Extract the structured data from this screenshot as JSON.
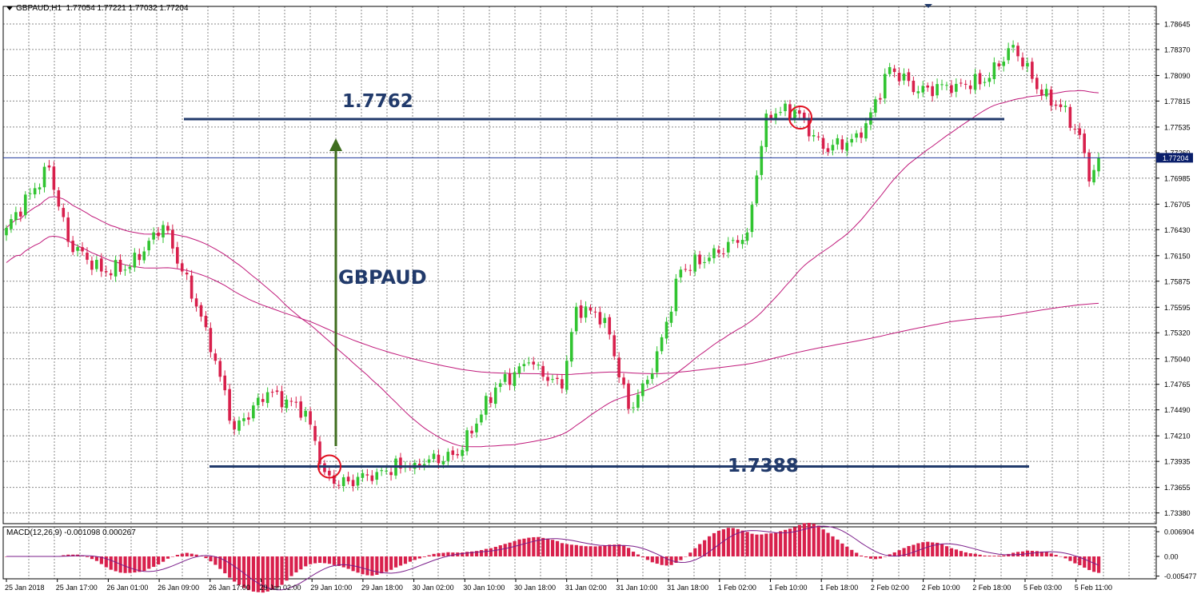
{
  "header": {
    "symbol_tf": "GBPAUD,H1",
    "ohlc": "1.77054 1.77221 1.77032 1.77204"
  },
  "macd": {
    "label": "MACD(12,26,9) -0.001098 0.000267",
    "ticks": [
      "0.006904",
      "0.00",
      "-0.005477"
    ]
  },
  "annotations": {
    "resistance_label": "1.7762",
    "support_label": "1.7388",
    "symbol_label": "GBPAUD"
  },
  "colors": {
    "bull": "#31c431",
    "bear": "#d8204c",
    "grid": "#8a8a8a",
    "level_line": "#213a6b",
    "ma": "#c0197a",
    "arrow": "#3f6e1f",
    "circle": "#e01020"
  },
  "chart_data": {
    "type": "candlestick",
    "symbol": "GBPAUD",
    "timeframe": "H1",
    "current_price": "1.77204",
    "ylim": [
      1.7338,
      1.7878
    ],
    "y_ticks": [
      "1.78645",
      "1.78370",
      "1.78090",
      "1.77815",
      "1.77535",
      "1.77260",
      "1.76985",
      "1.76705",
      "1.76430",
      "1.76150",
      "1.75875",
      "1.75595",
      "1.75320",
      "1.75040",
      "1.74765",
      "1.74490",
      "1.74210",
      "1.73935",
      "1.73655",
      "1.73380"
    ],
    "x_ticks": [
      "25 Jan 2018",
      "25 Jan 17:00",
      "26 Jan 01:00",
      "26 Jan 09:00",
      "26 Jan 17:00",
      "29 Jan 02:00",
      "29 Jan 10:00",
      "29 Jan 18:00",
      "30 Jan 02:00",
      "30 Jan 10:00",
      "30 Jan 18:00",
      "31 Jan 02:00",
      "31 Jan 10:00",
      "31 Jan 18:00",
      "1 Feb 02:00",
      "1 Feb 10:00",
      "1 Feb 18:00",
      "2 Feb 02:00",
      "2 Feb 10:00",
      "2 Feb 18:00",
      "5 Feb 03:00",
      "5 Feb 11:00"
    ],
    "levels": [
      {
        "label": "1.7762",
        "value": 1.7762
      },
      {
        "label": "1.7388",
        "value": 1.7388
      }
    ],
    "anchors": [
      {
        "i": 0,
        "c": 1.7645
      },
      {
        "i": 9,
        "c": 1.771
      },
      {
        "i": 13,
        "c": 1.763
      },
      {
        "i": 20,
        "c": 1.7598
      },
      {
        "i": 26,
        "c": 1.7603
      },
      {
        "i": 33,
        "c": 1.7648
      },
      {
        "i": 37,
        "c": 1.7598
      },
      {
        "i": 42,
        "c": 1.7538
      },
      {
        "i": 48,
        "c": 1.7428
      },
      {
        "i": 55,
        "c": 1.7468
      },
      {
        "i": 63,
        "c": 1.7448
      },
      {
        "i": 67,
        "c": 1.7382
      },
      {
        "i": 70,
        "c": 1.7368
      },
      {
        "i": 78,
        "c": 1.7382
      },
      {
        "i": 86,
        "c": 1.7392
      },
      {
        "i": 95,
        "c": 1.74
      },
      {
        "i": 103,
        "c": 1.7473
      },
      {
        "i": 110,
        "c": 1.75
      },
      {
        "i": 117,
        "c": 1.7472
      },
      {
        "i": 120,
        "c": 1.756
      },
      {
        "i": 126,
        "c": 1.7548
      },
      {
        "i": 131,
        "c": 1.745
      },
      {
        "i": 136,
        "c": 1.7488
      },
      {
        "i": 142,
        "c": 1.76
      },
      {
        "i": 150,
        "c": 1.7618
      },
      {
        "i": 156,
        "c": 1.764
      },
      {
        "i": 160,
        "c": 1.7768
      },
      {
        "i": 166,
        "c": 1.7772
      },
      {
        "i": 172,
        "c": 1.773
      },
      {
        "i": 180,
        "c": 1.7742
      },
      {
        "i": 186,
        "c": 1.7818
      },
      {
        "i": 192,
        "c": 1.7792
      },
      {
        "i": 200,
        "c": 1.78
      },
      {
        "i": 206,
        "c": 1.7802
      },
      {
        "i": 212,
        "c": 1.7842
      },
      {
        "i": 218,
        "c": 1.7788
      },
      {
        "i": 222,
        "c": 1.7775
      },
      {
        "i": 226,
        "c": 1.7745
      },
      {
        "i": 228,
        "c": 1.7695
      },
      {
        "i": 230,
        "c": 1.772
      }
    ]
  }
}
